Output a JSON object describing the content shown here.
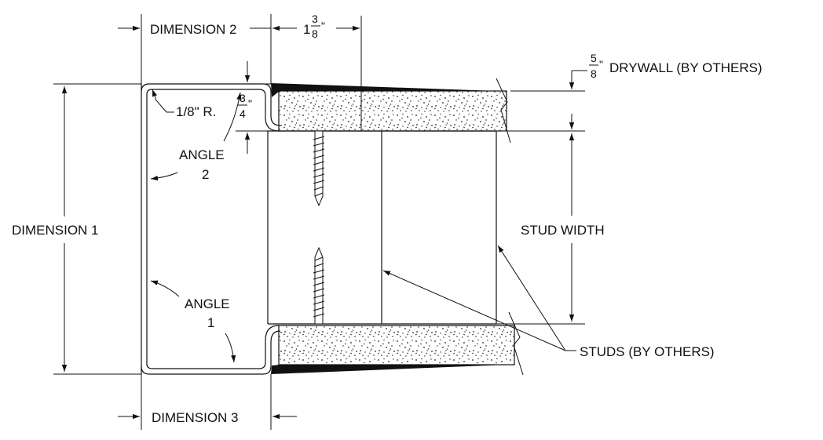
{
  "labels": {
    "dimension_1": "DIMENSION 1",
    "dimension_2": "DIMENSION 2",
    "dimension_3": "DIMENSION 3",
    "angle_1_word": "ANGLE",
    "angle_1_num": "1",
    "angle_2_word": "ANGLE",
    "angle_2_num": "2",
    "radius": "1/8\" R.",
    "stud_width": "STUD WIDTH",
    "studs": "STUDS (BY OTHERS)",
    "drywall": "DRYWALL (BY OTHERS)"
  },
  "fractions": {
    "flange_whole": "1",
    "flange_num": "3",
    "flange_den": "8",
    "flange_inch": "\"",
    "return_num": "3",
    "return_den": "4",
    "return_inch": "\"",
    "drywall_num": "5",
    "drywall_den": "8",
    "drywall_inch": "\""
  },
  "colors": {
    "line": "#111111",
    "background": "#ffffff"
  }
}
